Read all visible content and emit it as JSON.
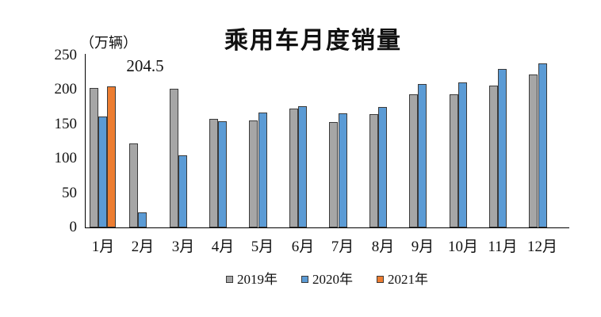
{
  "chart_data": {
    "type": "bar",
    "title": "乘用车月度销量",
    "y_unit_label": "（万辆）",
    "categories": [
      "1月",
      "2月",
      "3月",
      "4月",
      "5月",
      "6月",
      "7月",
      "8月",
      "9月",
      "10月",
      "11月",
      "12月"
    ],
    "series": [
      {
        "name": "2019年",
        "color": "#a6a6a6",
        "values": [
          203,
          122,
          202,
          158,
          156,
          173,
          153,
          165,
          193,
          193,
          206,
          222
        ]
      },
      {
        "name": "2020年",
        "color": "#5b9bd5",
        "values": [
          161,
          22,
          105,
          154,
          167,
          176,
          166,
          175,
          209,
          211,
          230,
          238
        ]
      },
      {
        "name": "2021年",
        "color": "#ed7d31",
        "values": [
          204.5,
          null,
          null,
          null,
          null,
          null,
          null,
          null,
          null,
          null,
          null,
          null
        ]
      }
    ],
    "annotation": {
      "text": "204.5",
      "series": "2021年",
      "category": "1月"
    },
    "ylim": [
      0,
      250
    ],
    "yticks": [
      0,
      50,
      100,
      150,
      200,
      250
    ],
    "grid": false,
    "legend_position": "bottom",
    "background_color": "#ffffff",
    "axis_color": "#000000",
    "bar_border_color": "#3b3b3b"
  }
}
